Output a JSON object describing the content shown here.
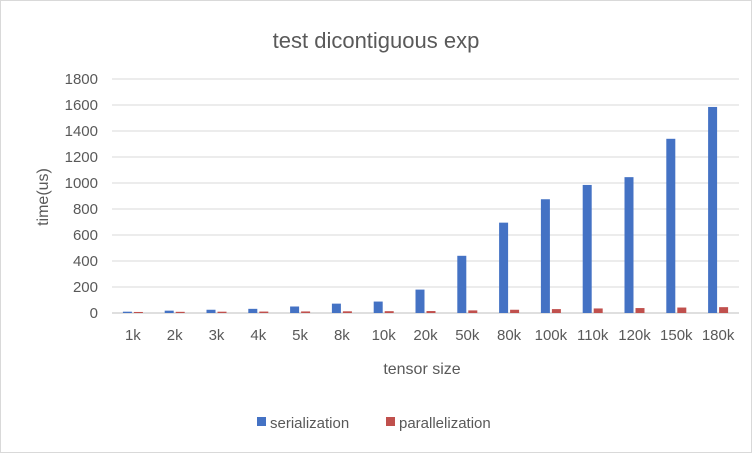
{
  "chart_data": {
    "type": "bar",
    "title": "test dicontiguous exp",
    "xlabel": "tensor size",
    "ylabel": "time(us)",
    "categories": [
      "1k",
      "2k",
      "3k",
      "4k",
      "5k",
      "8k",
      "10k",
      "20k",
      "50k",
      "80k",
      "100k",
      "110k",
      "120k",
      "150k",
      "180k"
    ],
    "series": [
      {
        "name": "serialization",
        "color": "#4472c4",
        "values": [
          10,
          18,
          25,
          32,
          50,
          72,
          88,
          180,
          440,
          695,
          875,
          985,
          1045,
          1340,
          1585
        ]
      },
      {
        "name": "parallelization",
        "color": "#c0504d",
        "values": [
          8,
          9,
          10,
          11,
          12,
          13,
          14,
          15,
          20,
          25,
          30,
          35,
          38,
          42,
          45
        ]
      }
    ],
    "ylim": [
      0,
      1800
    ],
    "yticks": [
      0,
      200,
      400,
      600,
      800,
      1000,
      1200,
      1400,
      1600,
      1800
    ],
    "grid": true,
    "legend_position": "bottom"
  }
}
